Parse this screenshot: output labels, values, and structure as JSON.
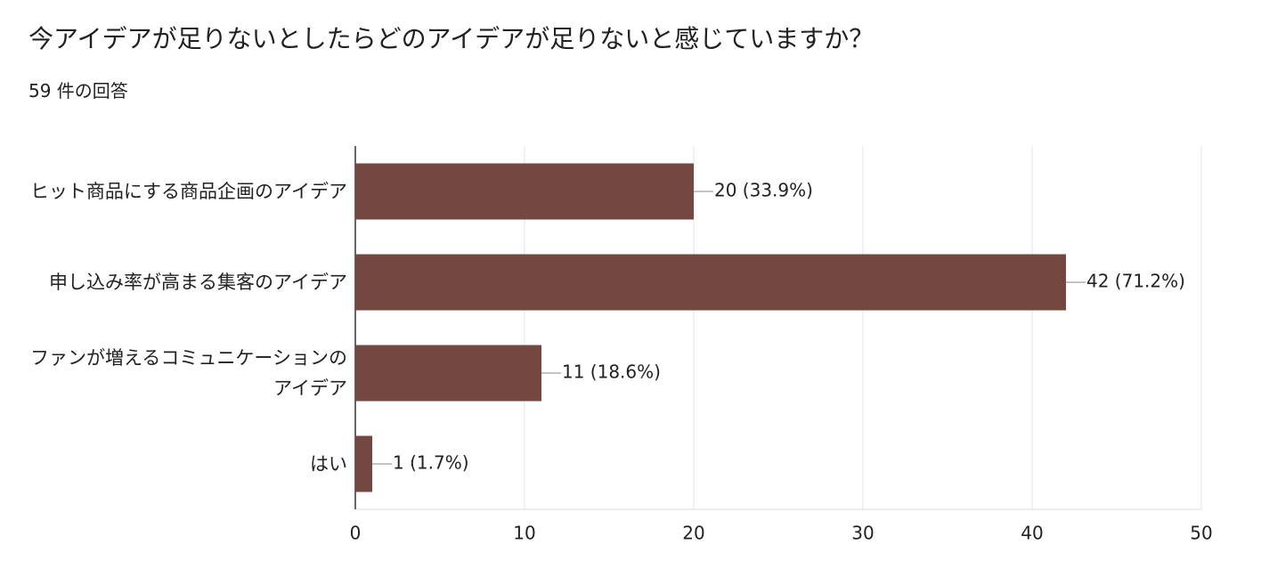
{
  "chart_data": {
    "type": "bar",
    "orientation": "horizontal",
    "title": "今アイデアが足りないとしたらどのアイデアが足りないと感じていますか？",
    "subtitle": "59 件の回答",
    "categories": [
      "ヒット商品にする商品企画のアイデア",
      "申し込み率が高まる集客のアイデア",
      "ファンが増えるコミュニケーションのアイデア",
      "はい"
    ],
    "values": [
      20,
      42,
      11,
      1
    ],
    "value_labels": [
      "20 (33.9%)",
      "42 (71.2%)",
      "11 (18.6%)",
      "1 (1.7%)"
    ],
    "color": "#744741",
    "xlim": [
      0,
      50
    ],
    "xticks": [
      0,
      10,
      20,
      30,
      40,
      50
    ],
    "grid": true
  }
}
